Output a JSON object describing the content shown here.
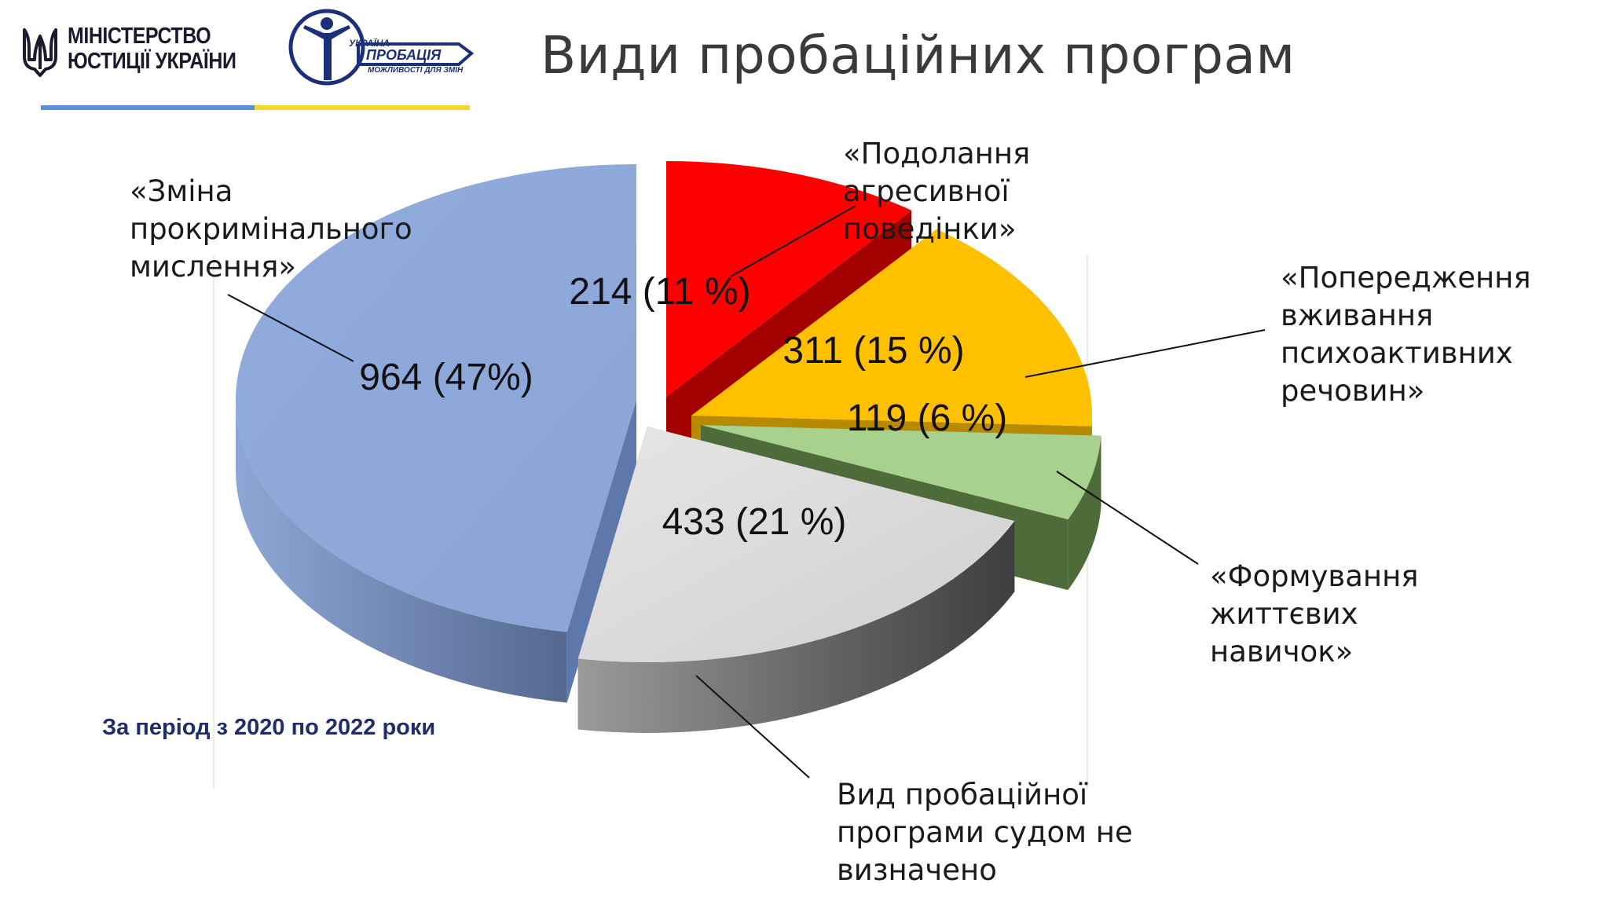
{
  "header": {
    "ministry_line1": "МІНІСТЕРСТВО",
    "ministry_line2": "ЮСТИЦІЇ УКРАЇНИ",
    "probation_top": "УКРАЇНА",
    "probation_main": "ПРОБАЦІЯ",
    "probation_sub": "МОЖЛИВОСТІ ДЛЯ ЗМІН",
    "title": "Види пробаційних програм"
  },
  "colors": {
    "flag_blue": "#5b8fd6",
    "flag_yellow": "#f5d530",
    "logo_navy": "#1b2f7a"
  },
  "chart_data": {
    "type": "pie",
    "style": "3d-exploded",
    "slices": [
      {
        "id": "aggression",
        "label_lines": [
          "«Подолання",
          "агресивної",
          "поведінки»"
        ],
        "value": 214,
        "percent_label": "214 (11 %)",
        "color": "#ff0000",
        "dark": "#a30000"
      },
      {
        "id": "substances",
        "label_lines": [
          "«Попередження",
          "вживання",
          "психоактивних",
          "речовин»"
        ],
        "value": 311,
        "percent_label": "311 (15 %)",
        "color": "#ffc000",
        "dark": "#b88a00"
      },
      {
        "id": "life_skills",
        "label_lines": [
          "«Формування",
          "життєвих",
          "навичок»"
        ],
        "value": 119,
        "percent_label": "119 (6 %)",
        "color": "#a9d18e",
        "dark": "#4e6b3a"
      },
      {
        "id": "not_defined",
        "label_lines": [
          "Вид пробаційної",
          "програми судом не",
          "визначено"
        ],
        "value": 433,
        "percent_label": "433 (21 %)",
        "color": "#d9d9d9",
        "dark": "#6f6f6f"
      },
      {
        "id": "procriminal",
        "label_lines": [
          "«Зміна",
          "прокримінального",
          "мислення»"
        ],
        "value": 964,
        "percent_label": "964 (47%)",
        "color": "#8faadc",
        "dark": "#5f78ab"
      }
    ],
    "note": "За період з 2020 по 2022 роки"
  }
}
